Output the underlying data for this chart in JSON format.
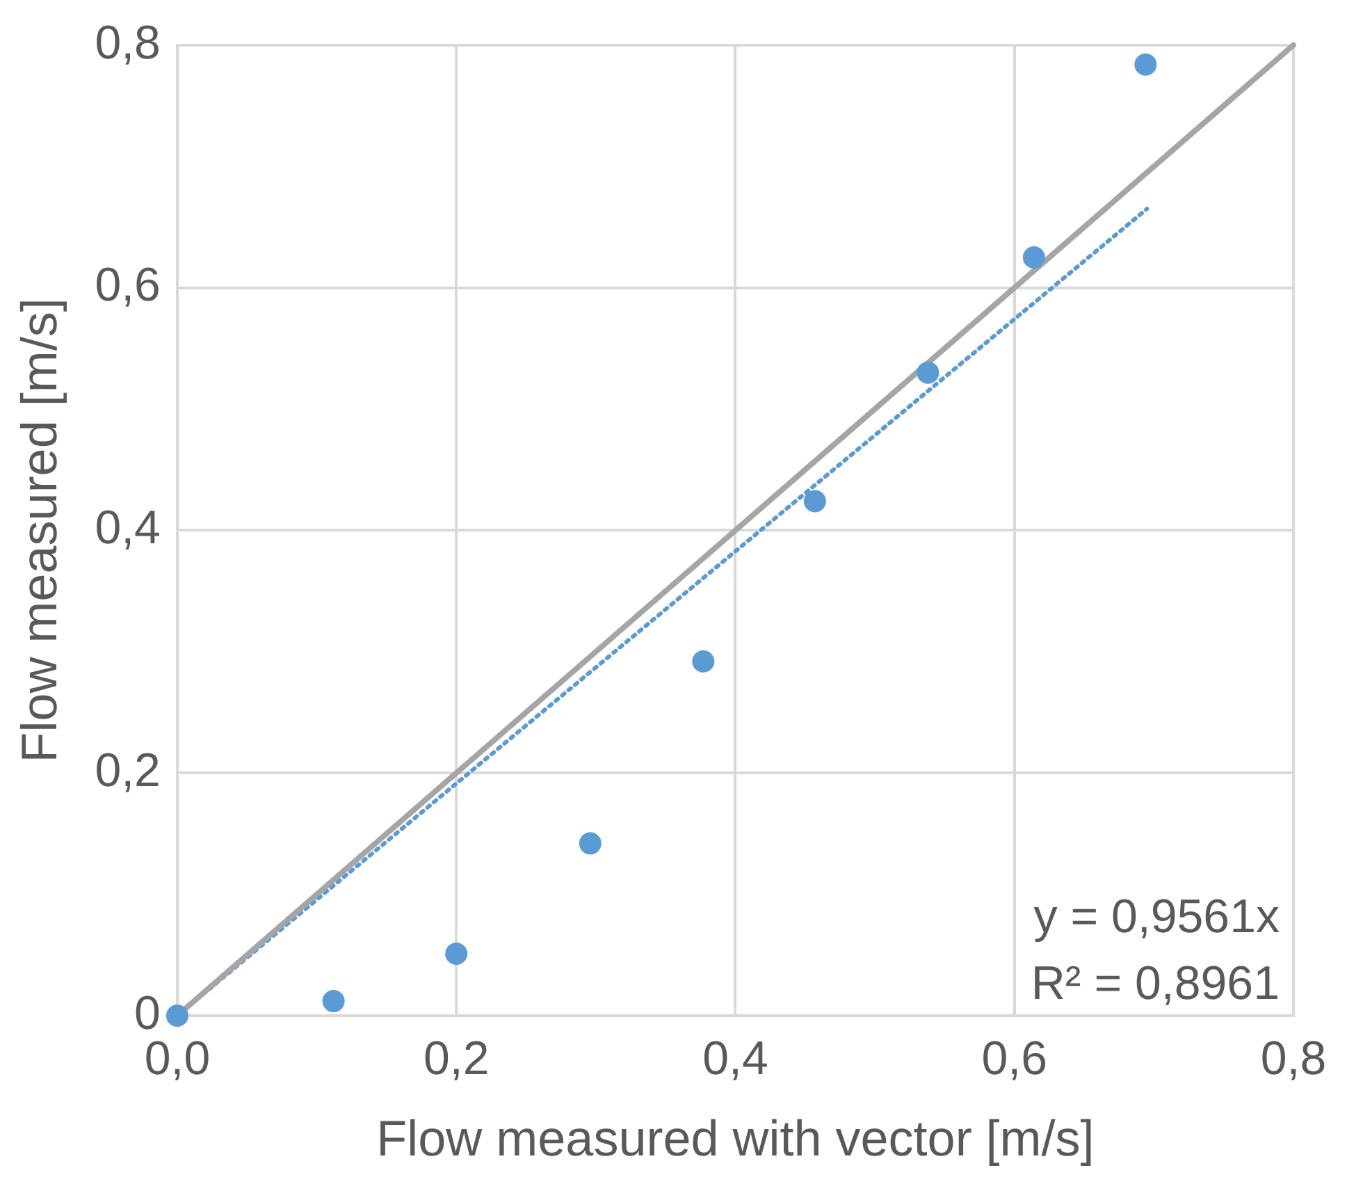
{
  "chart_data": {
    "type": "scatter",
    "xlabel": "Flow measured with vector [m/s]",
    "ylabel": "Flow measured [m/s]",
    "xlim": [
      0,
      0.8
    ],
    "ylim": [
      0,
      0.8
    ],
    "xticks": [
      {
        "value": 0,
        "label": "0,0"
      },
      {
        "value": 0.2,
        "label": "0,2"
      },
      {
        "value": 0.4,
        "label": "0,4"
      },
      {
        "value": 0.6,
        "label": "0,6"
      },
      {
        "value": 0.8,
        "label": "0,8"
      }
    ],
    "yticks": [
      0,
      {
        "value": 0.2,
        "label": "0,2"
      },
      {
        "value": 0.4,
        "label": "0,4"
      },
      {
        "value": 0.6,
        "label": "0,6"
      },
      {
        "value": 0.8,
        "label": "0,8"
      }
    ],
    "grid": true,
    "legend": false,
    "series": [
      {
        "type": "line",
        "color": "#a5a5a5",
        "x": [
          0,
          0.8
        ],
        "values": [
          0,
          0.8
        ],
        "line_style": "solid",
        "marker": "none"
      },
      {
        "type": "line",
        "color": "#5b9bd5",
        "x": [
          0,
          0.695
        ],
        "values": [
          0,
          0.665
        ],
        "line_style": "dotted",
        "marker": "none"
      },
      {
        "type": "scatter",
        "color": "#5b9bd5",
        "marker": "circle",
        "x": [
          0,
          0.112,
          0.2,
          0.296,
          0.377,
          0.457,
          0.538,
          0.614,
          0.694
        ],
        "values": [
          0,
          0.012,
          0.051,
          0.142,
          0.292,
          0.424,
          0.53,
          0.625,
          0.784
        ]
      }
    ],
    "annotations": [
      "y = 0,9561x",
      "R² = 0,8961"
    ]
  }
}
